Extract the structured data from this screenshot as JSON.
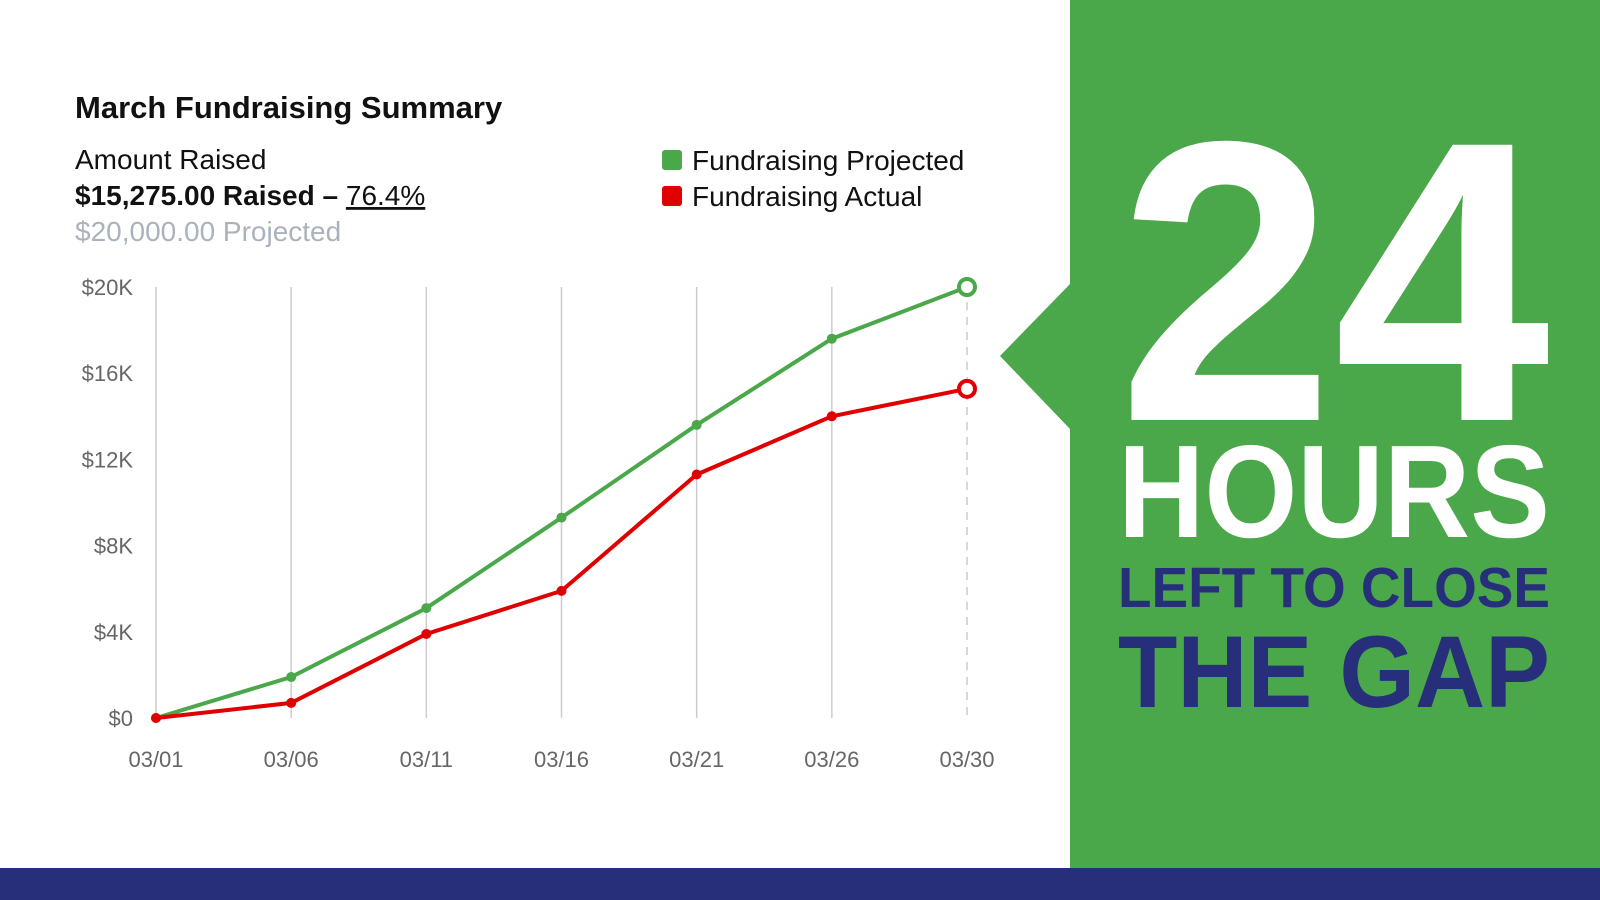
{
  "chart_data": {
    "type": "line",
    "title": "March Fundraising Summary",
    "subtitle": "Amount Raised",
    "raised_text": "$15,275.00 Raised –",
    "percent_text": "76.4%",
    "projected_text": "$20,000.00 Projected",
    "categories": [
      "03/01",
      "03/06",
      "03/11",
      "03/16",
      "03/21",
      "03/26",
      "03/30"
    ],
    "series": [
      {
        "name": "Fundraising Projected",
        "color": "#4aa84a",
        "values": [
          0,
          1900,
          5100,
          9300,
          13600,
          17600,
          20000
        ]
      },
      {
        "name": "Fundraising Actual",
        "color": "#e00000",
        "values": [
          0,
          700,
          3900,
          5900,
          11300,
          14000,
          15275
        ]
      }
    ],
    "ylim": [
      0,
      20000
    ],
    "yticks": [
      {
        "value": 0,
        "label": "$0"
      },
      {
        "value": 4000,
        "label": "$4K"
      },
      {
        "value": 8000,
        "label": "$8K"
      },
      {
        "value": 12000,
        "label": "$12K"
      },
      {
        "value": 16000,
        "label": "$16K"
      },
      {
        "value": 20000,
        "label": "$20K"
      }
    ],
    "grid": true
  },
  "banner": {
    "number": "24",
    "line1": "HOURS",
    "line2": "LEFT TO CLOSE",
    "line3": "THE GAP"
  }
}
